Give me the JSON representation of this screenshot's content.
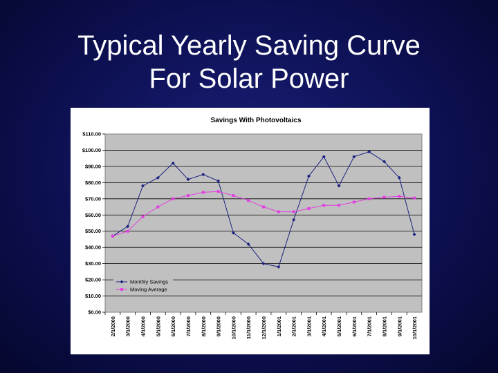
{
  "slide": {
    "title_line1": "Typical Yearly Saving Curve",
    "title_line2": "For Solar Power"
  },
  "colors": {
    "background": "#0d1052",
    "plot_area": "#c0c0c0",
    "monthly_savings": "#1a2080",
    "moving_average": "#e23ee2"
  },
  "chart_data": {
    "type": "line",
    "title": "Savings With Photovoltaics",
    "xlabel": "",
    "ylabel": "",
    "categories": [
      "2/1/2000",
      "3/1/2000",
      "4/1/2000",
      "5/1/2000",
      "6/1/2000",
      "7/1/2000",
      "8/1/2000",
      "9/1/2000",
      "10/1/2000",
      "11/1/2000",
      "12/1/2000",
      "1/1/2001",
      "2/1/2001",
      "3/1/2001",
      "4/1/2001",
      "5/1/2001",
      "6/1/2001",
      "7/1/2001",
      "8/1/2001",
      "9/1/2001",
      "10/1/2001"
    ],
    "ylim": [
      0,
      110
    ],
    "yticks": [
      "$0.00",
      "$10.00",
      "$20.00",
      "$30.00",
      "$40.00",
      "$50.00",
      "$60.00",
      "$70.00",
      "$80.00",
      "$90.00",
      "$100.00",
      "$110.00"
    ],
    "grid": true,
    "legend": "bottom-left",
    "series": [
      {
        "name": "Monthly Savings",
        "color": "#1a2080",
        "marker": "diamond",
        "values": [
          47,
          53,
          78,
          83,
          92,
          82,
          85,
          81,
          49,
          42,
          30,
          28,
          57,
          84,
          96,
          78,
          96,
          99,
          93,
          83,
          48
        ]
      },
      {
        "name": "Moving Average",
        "color": "#e23ee2",
        "marker": "square",
        "values": [
          47,
          50,
          59,
          65,
          70,
          72,
          74,
          74.5,
          72,
          69,
          65,
          62,
          62,
          64,
          66,
          66,
          68,
          70,
          71,
          71.5,
          70.5
        ]
      }
    ]
  }
}
